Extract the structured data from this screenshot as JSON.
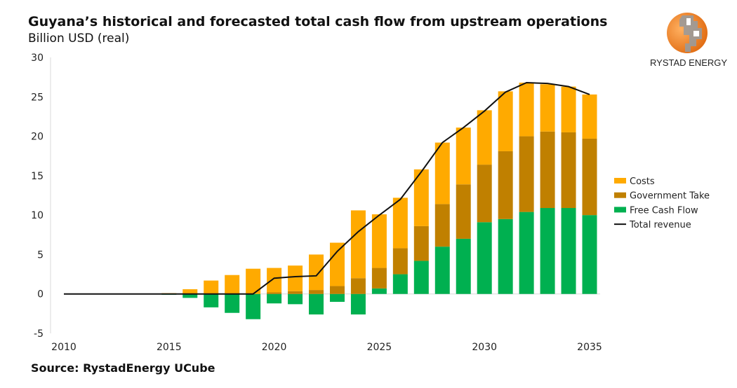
{
  "brand": "RYSTAD ENERGY",
  "source": "Source: RystadEnergy UCube",
  "chart_data": {
    "type": "bar",
    "stacked": true,
    "title": "Guyana’s historical and forecasted total cash flow from upstream operations",
    "subtitle": "Billion USD (real)",
    "xlabel": "",
    "ylabel": "",
    "xlim": [
      2010,
      2035
    ],
    "ylim": [
      -5,
      30
    ],
    "x_ticks": [
      "2010",
      "2015",
      "2020",
      "2025",
      "2030",
      "2035"
    ],
    "y_ticks": [
      "-5",
      "0",
      "5",
      "10",
      "15",
      "20",
      "25",
      "30"
    ],
    "grid": false,
    "legend_position": "right",
    "categories": [
      2015,
      2016,
      2017,
      2018,
      2019,
      2020,
      2021,
      2022,
      2023,
      2024,
      2025,
      2026,
      2027,
      2028,
      2029,
      2030,
      2031,
      2032,
      2033,
      2034,
      2035
    ],
    "series": [
      {
        "name": "Costs",
        "color": "#FFAA00",
        "values": [
          0.1,
          0.6,
          1.7,
          2.4,
          3.2,
          3.1,
          3.25,
          4.5,
          5.5,
          8.6,
          6.8,
          6.4,
          7.2,
          7.8,
          7.2,
          6.9,
          7.6,
          6.8,
          6.0,
          5.8,
          5.6
        ]
      },
      {
        "name": "Government Take",
        "color": "#C08000",
        "values": [
          0,
          0,
          0,
          0,
          0,
          0.2,
          0.35,
          0.5,
          1.0,
          2.0,
          2.6,
          3.3,
          4.4,
          5.4,
          6.9,
          7.3,
          8.6,
          9.6,
          9.7,
          9.6,
          9.7
        ]
      },
      {
        "name": "Free Cash Flow",
        "color": "#00B050",
        "values": [
          -0.1,
          -0.5,
          -1.7,
          -2.4,
          -3.2,
          -1.2,
          -1.3,
          -2.6,
          -1.0,
          -2.6,
          0.7,
          2.5,
          4.2,
          6.0,
          7.0,
          9.1,
          9.5,
          10.4,
          10.9,
          10.9,
          10.0
        ]
      }
    ],
    "line": {
      "name": "Total revenue",
      "color": "#111111",
      "x": [
        2010,
        2011,
        2012,
        2013,
        2014,
        2015,
        2016,
        2017,
        2018,
        2019,
        2020,
        2021,
        2022,
        2023,
        2024,
        2025,
        2026,
        2027,
        2028,
        2029,
        2030,
        2031,
        2032,
        2033,
        2034,
        2035
      ],
      "values": [
        0,
        0,
        0,
        0,
        0,
        0,
        0,
        0,
        0,
        0,
        2.0,
        2.2,
        2.3,
        5.4,
        7.9,
        10.0,
        12.0,
        15.5,
        19.2,
        21.1,
        23.2,
        25.6,
        26.8,
        26.7,
        26.3,
        25.3
      ]
    }
  }
}
